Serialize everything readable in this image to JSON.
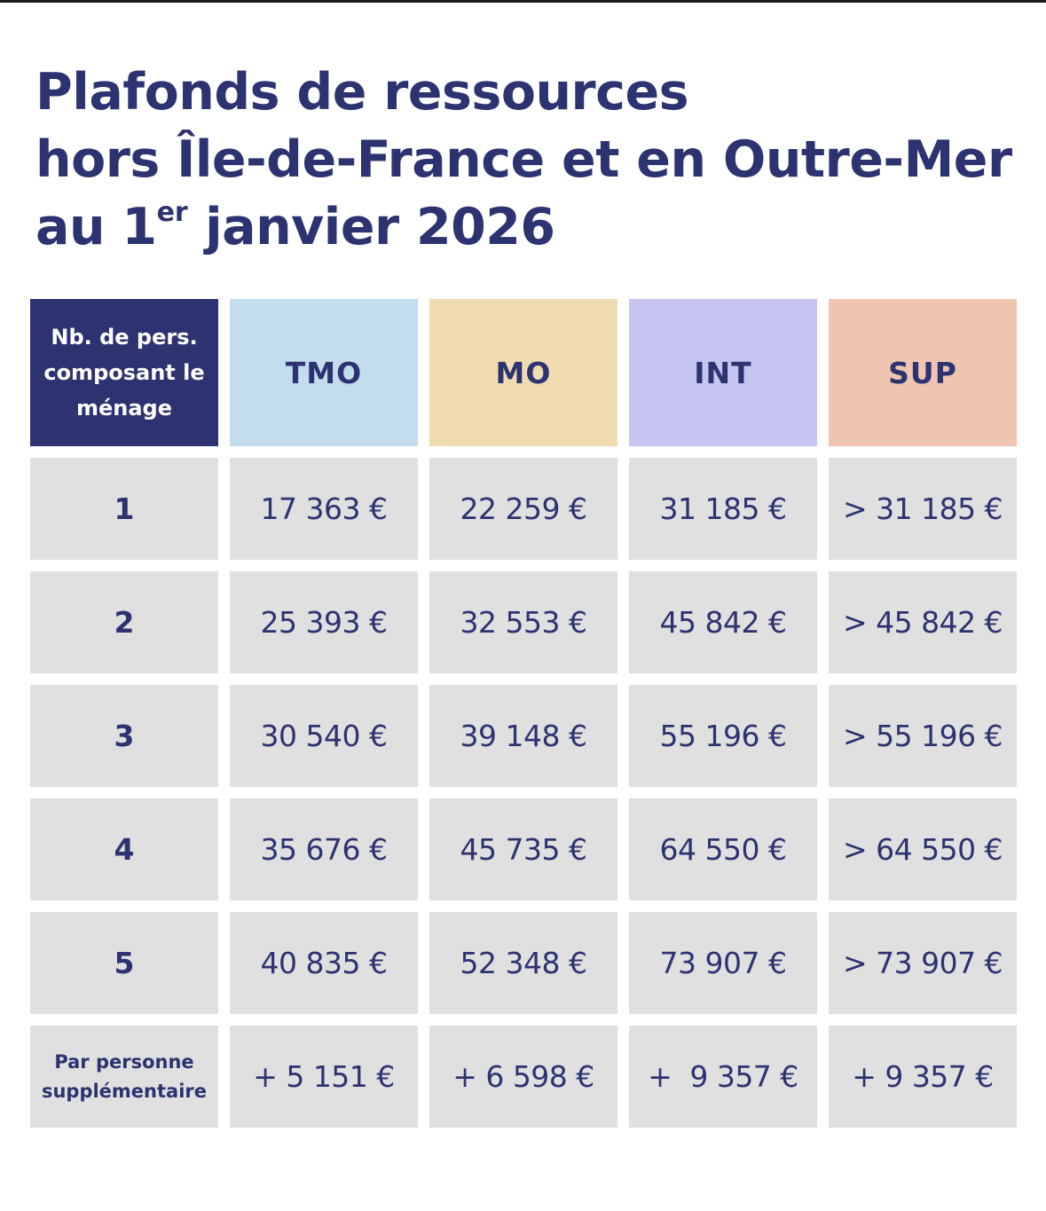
{
  "title": {
    "line1": "Plafonds de ressources",
    "line2": "hors Île-de-France et en Outre-Mer",
    "line3_pre": "au 1",
    "line3_sup": "er",
    "line3_post": " janvier 2026"
  },
  "table": {
    "header_first": "Nb. de pers. composant le ménage",
    "columns": [
      "TMO",
      "MO",
      "INT",
      "SUP"
    ],
    "rows": [
      {
        "label": "1",
        "values": [
          "17 363 €",
          "22 259 €",
          "31 185 €",
          "> 31 185 €"
        ]
      },
      {
        "label": "2",
        "values": [
          "25 393 €",
          "32 553 €",
          "45 842 €",
          "> 45 842 €"
        ]
      },
      {
        "label": "3",
        "values": [
          "30 540 €",
          "39 148 €",
          "55 196 €",
          "> 55 196 €"
        ]
      },
      {
        "label": "4",
        "values": [
          "35 676 €",
          "45 735 €",
          "64 550 €",
          "> 64 550 €"
        ]
      },
      {
        "label": "5",
        "values": [
          "40 835 €",
          "52 348 €",
          "73 907 €",
          "> 73 907 €"
        ]
      },
      {
        "label": "Par personne supplémentaire",
        "values": [
          "+ 5 151 €",
          "+ 6 598 €",
          "+  9 357 €",
          "+ 9 357 €"
        ]
      }
    ]
  },
  "colors": {
    "navy": "#2c3370",
    "tmo": "#c3ddee",
    "mo": "#f0dcb0",
    "int": "#c6c5f1",
    "sup": "#efc5b2",
    "cell": "#e0e0e0"
  }
}
